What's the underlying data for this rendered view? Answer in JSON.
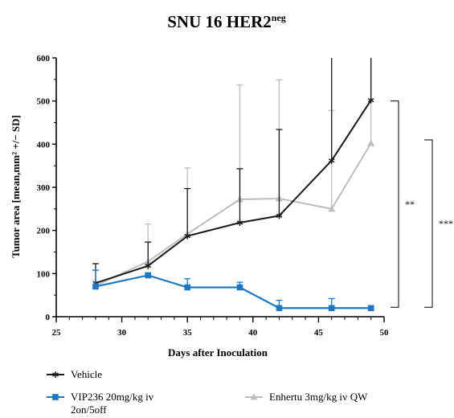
{
  "chart_data": {
    "type": "line",
    "title": "SNU 16 HER2",
    "title_superscript": "neg",
    "xlabel": "Days after Inoculation",
    "ylabel": "Tumor area [mean,mm² +/− SD]",
    "xlim": [
      25,
      50
    ],
    "ylim": [
      0,
      600
    ],
    "x_ticks": [
      "25",
      "30",
      "35",
      "40",
      "45",
      "50"
    ],
    "y_ticks": [
      "0",
      "100",
      "200",
      "300",
      "400",
      "500",
      "600"
    ],
    "grid": false,
    "legend_placement": "bottom",
    "series": [
      {
        "name": "Vehicle",
        "color": "#1a1a1a",
        "marker": "star",
        "x": [
          28,
          32,
          35,
          39,
          42,
          46,
          49
        ],
        "y": [
          78,
          118,
          187,
          218,
          234,
          362,
          502
        ],
        "sd": [
          45,
          55,
          110,
          125,
          200,
          250,
          260
        ]
      },
      {
        "name": "Enhertu 3mg/kg iv QW",
        "color": "#bdbdbd",
        "marker": "triangle",
        "x": [
          28,
          32,
          35,
          39,
          42,
          46,
          49
        ],
        "y": [
          72,
          128,
          192,
          272,
          274,
          250,
          402
        ],
        "sd": [
          35,
          87,
          153,
          265,
          275,
          228,
          200
        ]
      },
      {
        "name": "VIP236 20mg/kg iv 2on/5off",
        "name_lines": [
          "VIP236 20mg/kg iv",
          "2on/5off"
        ],
        "color": "#1f77c4",
        "marker": "square",
        "x": [
          28,
          32,
          35,
          39,
          42,
          46,
          49
        ],
        "y": [
          70,
          96,
          68,
          68,
          20,
          20,
          20
        ],
        "sd": [
          38,
          5,
          20,
          12,
          18,
          22,
          0
        ]
      }
    ],
    "annotations": [
      {
        "text": "**",
        "from_y": 500,
        "to_y": 22
      },
      {
        "text": "***",
        "from_y": 410,
        "to_y": 22
      }
    ]
  }
}
